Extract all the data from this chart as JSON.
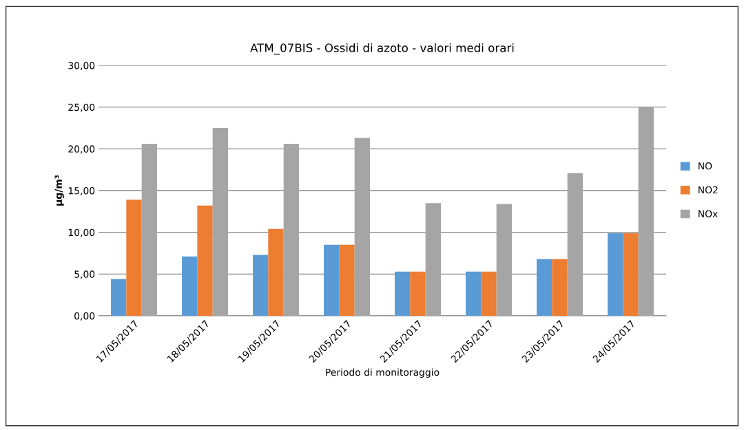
{
  "chart_data": {
    "type": "bar",
    "title": "ATM_07BIS - Ossidi di azoto - valori medi orari",
    "xlabel": "Periodo di monitoraggio",
    "ylabel": "µg/m³",
    "categories": [
      "17/05/2017",
      "18/05/2017",
      "19/05/2017",
      "20/05/2017",
      "21/05/2017",
      "22/05/2017",
      "23/05/2017",
      "24/05/2017"
    ],
    "series": [
      {
        "name": "NO",
        "color": "#5b9bd5",
        "values": [
          4.4,
          7.1,
          7.3,
          8.5,
          5.3,
          5.3,
          6.8,
          9.9
        ]
      },
      {
        "name": "NO2",
        "color": "#ed7d31",
        "values": [
          13.9,
          13.2,
          10.4,
          8.5,
          5.3,
          5.3,
          6.8,
          9.9
        ]
      },
      {
        "name": "NOx",
        "color": "#a5a5a5",
        "values": [
          20.6,
          22.5,
          20.6,
          21.3,
          13.5,
          13.4,
          17.1,
          25.0
        ]
      }
    ],
    "ylim": [
      0,
      30
    ],
    "yticks": [
      {
        "value": 0,
        "label": "0,00"
      },
      {
        "value": 5,
        "label": "5,00"
      },
      {
        "value": 10,
        "label": "10,00"
      },
      {
        "value": 15,
        "label": "15,00"
      },
      {
        "value": 20,
        "label": "20,00"
      },
      {
        "value": 25,
        "label": "25,00"
      },
      {
        "value": 30,
        "label": "30,00"
      }
    ],
    "grid": "y",
    "legend": "right"
  }
}
